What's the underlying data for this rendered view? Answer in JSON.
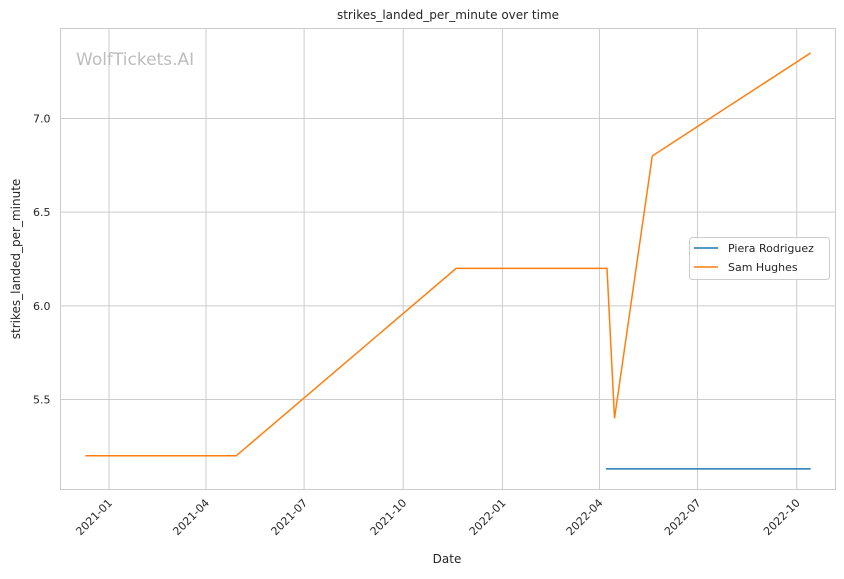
{
  "chart_data": {
    "type": "line",
    "title": "strikes_landed_per_minute over time",
    "xlabel": "Date",
    "ylabel": "strikes_landed_per_minute",
    "watermark": "WolfTickets.AI",
    "xlim": [
      "2020-11-17",
      "2022-11-06"
    ],
    "ylim": [
      5.02,
      7.48
    ],
    "x_ticks": [
      "2021-01",
      "2021-04",
      "2021-07",
      "2021-10",
      "2022-01",
      "2022-04",
      "2022-07",
      "2022-10"
    ],
    "y_ticks": [
      "5.5",
      "6.0",
      "6.5",
      "7.0"
    ],
    "grid": true,
    "legend_position": "center-right",
    "series": [
      {
        "name": "Piera Rodriguez",
        "color": "#1f77b4",
        "x": [
          "2022-04-07",
          "2022-10-14"
        ],
        "y": [
          5.13,
          5.13
        ]
      },
      {
        "name": "Sam Hughes",
        "color": "#ff7f0e",
        "x": [
          "2020-12-10",
          "2021-04-29",
          "2021-11-19",
          "2022-04-08",
          "2022-04-15",
          "2022-05-20",
          "2022-10-14"
        ],
        "y": [
          5.2,
          5.2,
          6.2,
          6.2,
          5.4,
          6.8,
          7.35
        ]
      }
    ]
  }
}
